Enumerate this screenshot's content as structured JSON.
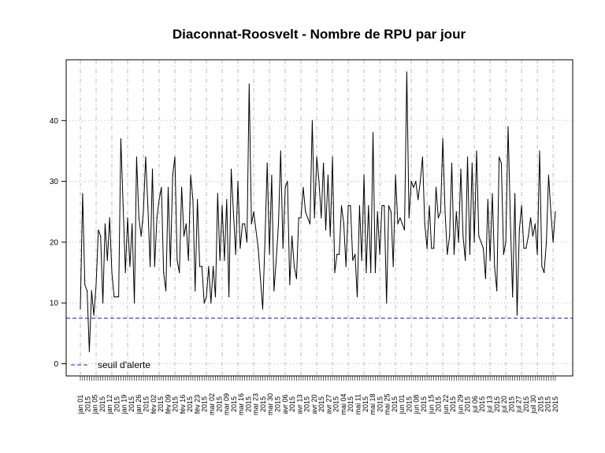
{
  "chart_data": {
    "type": "line",
    "title": "Diaconnat-Roosvelt  - Nombre de RPU par jour",
    "xlabel": "",
    "ylabel": "",
    "ylim": [
      -2,
      50
    ],
    "yticks": [
      0,
      10,
      20,
      30,
      40
    ],
    "grid": true,
    "x_start_label": "jan 01",
    "series": [
      {
        "name": "RPU",
        "color": "#000000",
        "values": [
          9,
          28,
          13,
          12,
          2,
          12,
          8,
          13,
          22,
          21,
          10,
          23,
          17,
          24,
          15,
          11,
          11,
          11,
          37,
          26,
          15,
          24,
          16,
          23,
          10,
          34,
          24,
          21,
          25,
          34,
          26,
          16,
          32,
          16,
          24,
          27,
          29,
          15,
          12,
          29,
          16,
          31,
          34,
          17,
          15,
          29,
          21,
          23,
          17,
          31,
          27,
          12,
          27,
          16,
          16,
          10,
          11,
          16,
          10,
          16,
          11,
          28,
          17,
          26,
          17,
          27,
          11,
          32,
          25,
          18,
          30,
          19,
          23,
          23,
          20,
          46,
          23,
          25,
          22,
          19,
          14,
          9,
          20,
          33,
          18,
          31,
          12,
          17,
          23,
          35,
          19,
          29,
          30,
          13,
          21,
          16,
          14,
          24,
          24,
          29,
          25,
          24,
          23,
          40,
          24,
          34,
          30,
          24,
          33,
          22,
          31,
          21,
          34,
          15,
          18,
          18,
          26,
          23,
          16,
          26,
          26,
          17,
          18,
          11,
          26,
          17,
          31,
          15,
          26,
          15,
          38,
          15,
          25,
          18,
          26,
          26,
          10,
          26,
          25,
          16,
          31,
          23,
          24,
          23,
          22,
          48,
          24,
          30,
          29,
          30,
          27,
          30,
          34,
          23,
          19,
          26,
          19,
          19,
          29,
          24,
          25,
          37,
          25,
          18,
          21,
          33,
          18,
          25,
          20,
          32,
          21,
          17,
          34,
          18,
          33,
          20,
          35,
          21,
          20,
          19,
          14,
          27,
          17,
          28,
          16,
          12,
          34,
          33,
          18,
          20,
          39,
          24,
          11,
          28,
          8,
          22,
          26,
          19,
          19,
          21,
          24,
          21,
          23,
          18,
          35,
          16,
          15,
          20,
          31,
          25,
          20,
          25
        ]
      },
      {
        "name": "seuil d'alerte",
        "color": "#2020e0",
        "dashed": true,
        "constant": 7.5
      }
    ],
    "legend": {
      "position": "bottom-left",
      "label": "seuil d'alerte"
    },
    "date_labels": [
      "jan 01",
      "2015",
      "jan 05",
      "2015",
      "jan 12",
      "2015",
      "jan 19",
      "2015",
      "jan 26",
      "2015",
      "fév 02",
      "2015",
      "fév 09",
      "2015",
      "fév 16",
      "2015",
      "fév 23",
      "2015",
      "mar 02",
      "2015",
      "mar 09",
      "2015",
      "mar 16",
      "2015",
      "mar 23",
      "2015",
      "mar 30",
      "2015",
      "avr 06",
      "2015",
      "avr 13",
      "2015",
      "avr 20",
      "2015",
      "avr 27",
      "2015",
      "mai 04",
      "2015",
      "mai 11",
      "2015",
      "mai 18",
      "2015",
      "mai 25",
      "2015",
      "jun 01",
      "2015",
      "jun 08",
      "2015",
      "jun 15",
      "2015",
      "jun 22",
      "2015",
      "jun 29",
      "2015",
      "jul 06",
      "2015",
      "jul 13",
      "2015",
      "jul 20",
      "2015",
      "jul 27",
      "2015",
      "juil 30",
      "2015",
      "2015",
      "2015"
    ]
  }
}
